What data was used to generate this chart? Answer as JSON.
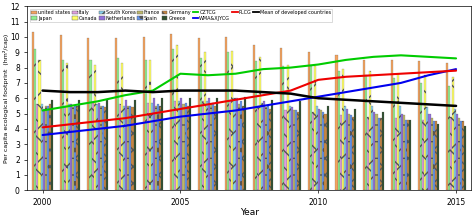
{
  "years": [
    2000,
    2001,
    2002,
    2003,
    2004,
    2005,
    2006,
    2007,
    2008,
    2009,
    2010,
    2011,
    2012,
    2013,
    2014,
    2015
  ],
  "countries": {
    "united states": {
      "color": "#F4A460",
      "hatch": "",
      "values": [
        10.3,
        10.1,
        9.9,
        9.9,
        10.0,
        10.2,
        9.9,
        10.0,
        9.5,
        9.3,
        9.0,
        8.8,
        8.5,
        8.5,
        8.4,
        8.3
      ]
    },
    "Japan": {
      "color": "#90EE90",
      "hatch": "/",
      "values": [
        9.2,
        8.5,
        8.5,
        8.6,
        8.5,
        9.2,
        8.6,
        9.0,
        8.4,
        8.1,
        8.1,
        7.8,
        7.5,
        7.3,
        7.0,
        6.8
      ]
    },
    "Italy": {
      "color": "#DDA0DD",
      "hatch": "\\\\",
      "values": [
        5.6,
        5.5,
        5.7,
        5.6,
        5.7,
        5.8,
        5.8,
        5.9,
        5.5,
        5.2,
        5.1,
        4.9,
        4.8,
        4.7,
        4.6,
        4.8
      ]
    },
    "Canada": {
      "color": "#FFFF66",
      "hatch": "x",
      "values": [
        8.5,
        8.3,
        8.2,
        8.3,
        8.5,
        9.5,
        9.0,
        9.1,
        8.7,
        8.2,
        8.1,
        7.9,
        7.8,
        7.6,
        7.5,
        7.4
      ]
    },
    "South Korea": {
      "color": "#87CEEB",
      "hatch": "//",
      "values": [
        5.6,
        5.6,
        5.6,
        5.5,
        5.7,
        5.8,
        5.8,
        6.0,
        5.7,
        5.5,
        5.5,
        5.5,
        5.5,
        5.5,
        5.4,
        5.3
      ]
    },
    "Netherlands": {
      "color": "#9370DB",
      "hatch": "",
      "values": [
        5.3,
        5.6,
        5.7,
        5.9,
        6.0,
        6.0,
        6.0,
        6.0,
        5.8,
        5.4,
        5.3,
        5.3,
        5.1,
        5.0,
        5.0,
        5.0
      ]
    },
    "France": {
      "color": "#BDB76B",
      "hatch": "-",
      "values": [
        5.5,
        5.4,
        5.5,
        5.5,
        5.5,
        5.6,
        5.6,
        5.6,
        5.4,
        5.2,
        5.2,
        5.0,
        5.0,
        4.9,
        4.7,
        4.7
      ]
    },
    "Spain": {
      "color": "#6495ED",
      "hatch": ".",
      "values": [
        5.5,
        5.5,
        5.5,
        5.5,
        5.6,
        5.7,
        5.7,
        5.8,
        5.5,
        5.2,
        5.1,
        4.9,
        4.7,
        4.6,
        4.5,
        4.5
      ]
    },
    "Germany": {
      "color": "#C68642",
      "hatch": "xx",
      "values": [
        5.6,
        5.5,
        5.4,
        5.4,
        5.5,
        5.5,
        5.5,
        5.5,
        5.3,
        5.1,
        5.0,
        4.8,
        4.7,
        4.6,
        4.5,
        4.5
      ]
    },
    "Greece": {
      "color": "#2F4F2F",
      "hatch": "",
      "values": [
        5.9,
        5.9,
        5.9,
        5.9,
        6.0,
        6.0,
        6.0,
        6.1,
        5.9,
        5.8,
        5.5,
        5.3,
        5.1,
        4.6,
        4.3,
        4.2
      ]
    }
  },
  "lines": {
    "CZTCG": {
      "color": "#00CC00",
      "lw": 1.5,
      "values": [
        5.2,
        5.5,
        5.8,
        6.2,
        6.5,
        7.6,
        7.5,
        7.6,
        7.9,
        8.0,
        8.2,
        8.5,
        8.7,
        8.8,
        8.7,
        8.6
      ]
    },
    "WMA&XJYCG": {
      "color": "#0000EE",
      "lw": 1.5,
      "values": [
        3.6,
        3.8,
        4.0,
        4.2,
        4.5,
        4.8,
        5.0,
        5.2,
        5.5,
        5.8,
        6.1,
        6.4,
        6.7,
        7.0,
        7.5,
        7.9
      ]
    },
    "PLCG": {
      "color": "#EE0000",
      "lw": 1.5,
      "values": [
        4.1,
        4.3,
        4.5,
        4.7,
        5.0,
        5.3,
        5.6,
        5.9,
        6.2,
        6.5,
        7.2,
        7.4,
        7.5,
        7.6,
        7.7,
        7.8
      ]
    },
    "Mean of developed countries": {
      "color": "#000000",
      "lw": 1.8,
      "values": [
        6.5,
        6.4,
        6.4,
        6.5,
        6.4,
        6.5,
        6.5,
        6.5,
        6.4,
        6.3,
        6.0,
        5.9,
        5.8,
        5.7,
        5.6,
        5.5
      ]
    }
  },
  "ylim": [
    0,
    12
  ],
  "yticks": [
    0,
    1,
    2,
    3,
    4,
    5,
    6,
    7,
    8,
    9,
    10,
    11,
    12
  ],
  "xlabel": "Year",
  "ylabel": "Per capita ecological footprint  (hm²/cap)",
  "figsize": [
    4.74,
    2.2
  ],
  "dpi": 100,
  "legend_row1": [
    "united states",
    "Japan",
    "Italy",
    "Canada",
    "South Korea",
    "Netherlands",
    "France",
    "Spain"
  ],
  "legend_row2_bars": [
    "Germany",
    "Greece"
  ],
  "legend_row2_lines": [
    "CZTCG",
    "WMA&XJYCG",
    "PLCG",
    "Mean of developed countries"
  ]
}
